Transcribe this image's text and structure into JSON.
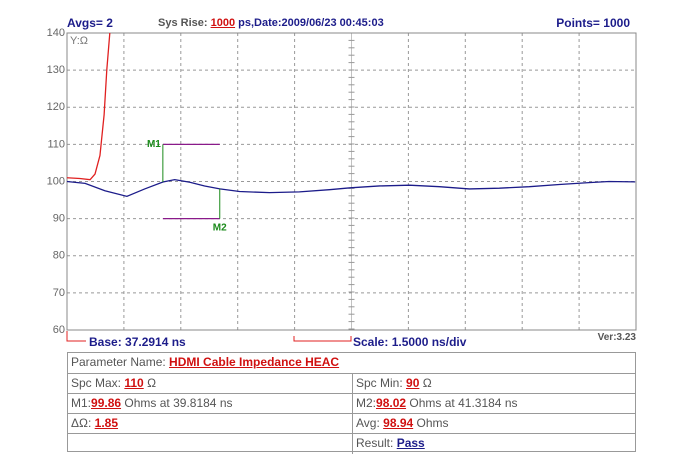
{
  "header": {
    "avgs_label": "Avgs=",
    "avgs": 2,
    "sys_rise_label": "Sys Rise:",
    "sys_rise": 1000,
    "date_text": "ps,Date:2009/06/23 00:45:03",
    "points_label": "Points=",
    "points": 1000
  },
  "chart_data": {
    "type": "line",
    "y_label": "Y:Ω",
    "xlim": [
      37.2914,
      52.2914
    ],
    "ylim": [
      60,
      140
    ],
    "yticks": [
      60,
      70,
      80,
      90,
      100,
      110,
      120,
      130,
      140
    ],
    "grid": true,
    "series": [
      {
        "color": "#1c1c8a",
        "x": [
          37.29,
          37.77,
          38.29,
          38.87,
          39.34,
          39.82,
          40.13,
          40.53,
          40.92,
          41.32,
          41.84,
          42.63,
          43.42,
          44.21,
          44.76,
          45.53,
          46.32,
          47.11,
          47.9,
          48.69,
          49.48,
          50.27,
          51.05,
          51.58,
          52.27
        ],
        "values": [
          100,
          99.5,
          97.5,
          96,
          98,
          99.86,
          100.5,
          99.8,
          98.8,
          98.02,
          97.3,
          97,
          97.2,
          97.8,
          98.3,
          98.8,
          99,
          98.6,
          98,
          98.2,
          98.6,
          99.2,
          99.7,
          100,
          99.9
        ]
      },
      {
        "color": "#e02020",
        "x": [
          37.29,
          37.63,
          37.9,
          38.03,
          38.16,
          38.27,
          38.34,
          38.42
        ],
        "values": [
          101,
          100.8,
          100.5,
          102,
          107,
          118,
          130,
          140
        ]
      }
    ],
    "markers": [
      {
        "name": "M1",
        "x": 39.8184,
        "value": 99.86,
        "color": "#1a8a1a"
      },
      {
        "name": "M2",
        "x": 41.3184,
        "value": 98.02,
        "color": "#1a8a1a"
      }
    ],
    "limit_color": "#8a1a8a"
  },
  "footer": {
    "base": "Base: 37.2914 ns",
    "scale": "Scale: 1.5000 ns/div",
    "version": "Ver:3.23"
  },
  "panel": {
    "param_label": "Parameter Name:",
    "param_value": "HDMI Cable Impedance HEAC",
    "spc_max_label": "Spc Max:",
    "spc_max": 110,
    "spc_min_label": "Spc Min:",
    "spc_min": 90,
    "ohm_symbol": "Ω",
    "m1_label": "M1:",
    "m2_label": "M2:",
    "marker_unit": "Ohms at",
    "time_unit": "ns",
    "delta_label": "ΔΩ:",
    "delta": 1.85,
    "avg_label": "Avg:",
    "avg": 98.94,
    "avg_unit": "Ohms",
    "result_label": "Result:",
    "result": "Pass"
  }
}
